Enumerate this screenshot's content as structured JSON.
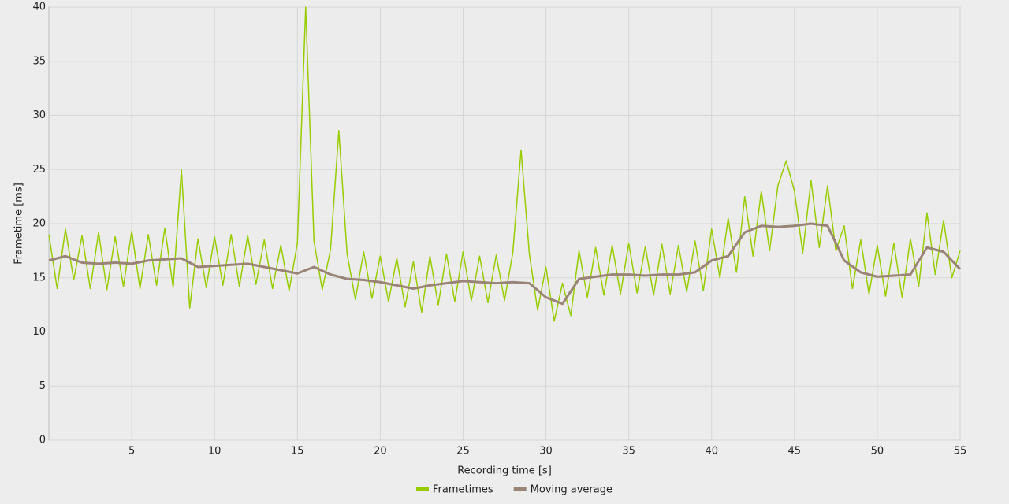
{
  "chart_data": {
    "type": "line",
    "xlabel": "Recording time [s]",
    "ylabel": "Frametime [ms]",
    "xlim": [
      0,
      55
    ],
    "xticks": [
      5,
      10,
      15,
      20,
      25,
      30,
      35,
      40,
      45,
      50,
      55
    ],
    "ylim": [
      0,
      40
    ],
    "yticks": [
      0,
      5,
      10,
      15,
      20,
      25,
      30,
      35,
      40
    ],
    "grid": true,
    "legend": "bottom",
    "series": [
      {
        "name": "Frametimes",
        "color": "#99cc00",
        "x": [
          0,
          0.5,
          1,
          1.5,
          2,
          2.5,
          3,
          3.5,
          4,
          4.5,
          5,
          5.5,
          6,
          6.5,
          7,
          7.5,
          8,
          8.5,
          9,
          9.5,
          10,
          10.5,
          11,
          11.5,
          12,
          12.5,
          13,
          13.5,
          14,
          14.5,
          15,
          15.5,
          16,
          16.5,
          17,
          17.5,
          18,
          18.5,
          19,
          19.5,
          20,
          20.5,
          21,
          21.5,
          22,
          22.5,
          23,
          23.5,
          24,
          24.5,
          25,
          25.5,
          26,
          26.5,
          27,
          27.5,
          28,
          28.5,
          29,
          29.5,
          30,
          30.5,
          31,
          31.5,
          32,
          32.5,
          33,
          33.5,
          34,
          34.5,
          35,
          35.5,
          36,
          36.5,
          37,
          37.5,
          38,
          38.5,
          39,
          39.5,
          40,
          40.5,
          41,
          41.5,
          42,
          42.5,
          43,
          43.5,
          44,
          44.5,
          45,
          45.5,
          46,
          46.5,
          47,
          47.5,
          48,
          48.5,
          49,
          49.5,
          50,
          50.5,
          51,
          51.5,
          52,
          52.5,
          53,
          53.5,
          54,
          54.5,
          55
        ],
        "values": [
          19.0,
          14.0,
          19.5,
          14.8,
          18.9,
          14.0,
          19.2,
          13.9,
          18.8,
          14.2,
          19.3,
          14.0,
          19.0,
          14.3,
          19.6,
          14.1,
          25.0,
          12.2,
          18.6,
          14.1,
          18.8,
          14.3,
          19.0,
          14.2,
          18.9,
          14.4,
          18.5,
          14.0,
          18.0,
          13.8,
          18.2,
          40.0,
          18.4,
          13.9,
          17.6,
          28.6,
          17.2,
          13.0,
          17.4,
          13.1,
          17.0,
          12.8,
          16.8,
          12.3,
          16.5,
          11.8,
          17.0,
          12.5,
          17.2,
          12.8,
          17.4,
          12.9,
          17.0,
          12.7,
          17.1,
          12.9,
          17.3,
          26.8,
          17.2,
          12.0,
          16.0,
          11.0,
          14.5,
          11.5,
          17.5,
          13.2,
          17.8,
          13.4,
          18.0,
          13.5,
          18.2,
          13.6,
          17.9,
          13.4,
          18.1,
          13.5,
          18.0,
          13.7,
          18.4,
          13.8,
          19.5,
          15.0,
          20.5,
          15.5,
          22.5,
          17.0,
          23.0,
          17.5,
          23.5,
          25.8,
          23.0,
          17.3,
          24.0,
          17.8,
          23.5,
          17.5,
          19.8,
          14.0,
          18.5,
          13.5,
          18.0,
          13.3,
          18.2,
          13.2,
          18.6,
          14.2,
          21.0,
          15.3,
          20.3,
          15.0,
          17.5
        ]
      },
      {
        "name": "Moving average",
        "color": "#9a8478",
        "x": [
          0,
          1,
          2,
          3,
          4,
          5,
          6,
          7,
          8,
          9,
          10,
          11,
          12,
          13,
          14,
          15,
          16,
          17,
          18,
          19,
          20,
          21,
          22,
          23,
          24,
          25,
          26,
          27,
          28,
          29,
          30,
          31,
          32,
          33,
          34,
          35,
          36,
          37,
          38,
          39,
          40,
          41,
          42,
          43,
          44,
          45,
          46,
          47,
          48,
          49,
          50,
          51,
          52,
          53,
          54,
          55
        ],
        "values": [
          16.6,
          17.0,
          16.4,
          16.3,
          16.4,
          16.3,
          16.6,
          16.7,
          16.8,
          16.0,
          16.1,
          16.2,
          16.3,
          16.0,
          15.7,
          15.4,
          16.0,
          15.3,
          14.9,
          14.8,
          14.6,
          14.3,
          14.0,
          14.3,
          14.5,
          14.7,
          14.6,
          14.5,
          14.6,
          14.5,
          13.2,
          12.6,
          14.9,
          15.1,
          15.3,
          15.3,
          15.2,
          15.3,
          15.3,
          15.5,
          16.6,
          17.0,
          19.2,
          19.8,
          19.7,
          19.8,
          20.0,
          19.8,
          16.6,
          15.5,
          15.1,
          15.2,
          15.3,
          17.8,
          17.4,
          15.8
        ]
      }
    ]
  }
}
